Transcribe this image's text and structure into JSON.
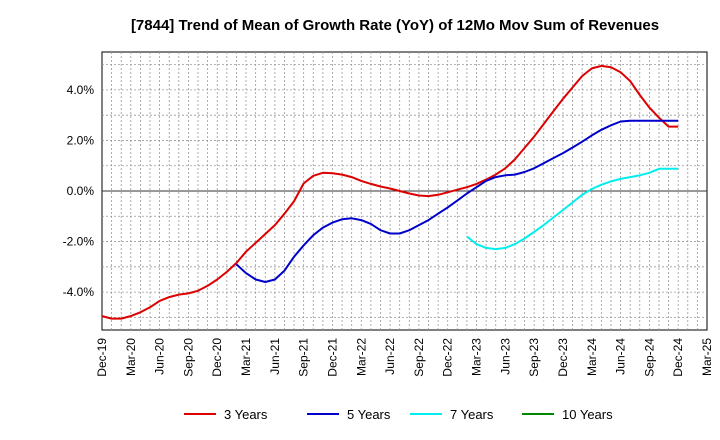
{
  "chart_data": {
    "type": "line",
    "title": "[7844]  Trend of Mean of Growth Rate (YoY) of 12Mo Mov Sum of Revenues",
    "xlabel": "",
    "ylabel": "",
    "ylim": [
      -5.5,
      5.5
    ],
    "y_ticks": [
      -4,
      -2,
      0,
      2,
      4
    ],
    "y_tick_labels": [
      "-4.0%",
      "-2.0%",
      "0.0%",
      "2.0%",
      "4.0%"
    ],
    "x_ticks": [
      0,
      3,
      6,
      9,
      12,
      15,
      18,
      21,
      24,
      27,
      30,
      33,
      36,
      39,
      42,
      45,
      48,
      51,
      54,
      57,
      60,
      63
    ],
    "x_tick_labels": [
      "Dec-19",
      "Mar-20",
      "Jun-20",
      "Sep-20",
      "Dec-20",
      "Mar-21",
      "Jun-21",
      "Sep-21",
      "Dec-21",
      "Mar-22",
      "Jun-22",
      "Sep-22",
      "Dec-22",
      "Mar-23",
      "Jun-23",
      "Sep-23",
      "Dec-23",
      "Mar-24",
      "Jun-24",
      "Sep-24",
      "Dec-24",
      "Mar-25"
    ],
    "xlim": [
      0,
      63
    ],
    "grid": true,
    "legend_position": "bottom",
    "series": [
      {
        "name": "3 Years",
        "color": "#dd0000",
        "x": [
          0,
          1,
          2,
          3,
          4,
          5,
          6,
          7,
          8,
          9,
          10,
          11,
          12,
          13,
          14,
          15,
          16,
          17,
          18,
          19,
          20,
          21,
          22,
          23,
          24,
          25,
          26,
          27,
          28,
          29,
          30,
          31,
          32,
          33,
          34,
          35,
          36,
          37,
          38,
          39,
          40,
          41,
          42,
          43,
          44,
          45,
          46,
          47,
          48,
          49,
          50,
          51,
          52,
          53,
          54,
          55,
          56,
          57,
          58,
          59,
          60
        ],
        "values": [
          -4.95,
          -5.05,
          -5.05,
          -4.95,
          -4.8,
          -4.6,
          -4.35,
          -4.2,
          -4.1,
          -4.05,
          -3.95,
          -3.75,
          -3.5,
          -3.2,
          -2.85,
          -2.4,
          -2.05,
          -1.7,
          -1.35,
          -0.9,
          -0.4,
          0.3,
          0.6,
          0.72,
          0.7,
          0.65,
          0.55,
          0.4,
          0.28,
          0.18,
          0.1,
          0.0,
          -0.1,
          -0.18,
          -0.2,
          -0.15,
          -0.05,
          0.05,
          0.15,
          0.28,
          0.45,
          0.65,
          0.9,
          1.25,
          1.7,
          2.15,
          2.65,
          3.15,
          3.65,
          4.1,
          4.55,
          4.85,
          4.95,
          4.9,
          4.7,
          4.35,
          3.8,
          3.3,
          2.9,
          2.55,
          2.55
        ]
      },
      {
        "name": "5 Years",
        "color": "#0000cc",
        "x": [
          14,
          15,
          16,
          17,
          18,
          19,
          20,
          21,
          22,
          23,
          24,
          25,
          26,
          27,
          28,
          29,
          30,
          31,
          32,
          33,
          34,
          35,
          36,
          37,
          38,
          39,
          40,
          41,
          42,
          43,
          44,
          45,
          46,
          47,
          48,
          49,
          50,
          51,
          52,
          53,
          54,
          55,
          56,
          57,
          58,
          59,
          60
        ],
        "values": [
          -2.9,
          -3.25,
          -3.5,
          -3.6,
          -3.5,
          -3.15,
          -2.6,
          -2.15,
          -1.75,
          -1.45,
          -1.25,
          -1.12,
          -1.08,
          -1.15,
          -1.3,
          -1.55,
          -1.68,
          -1.68,
          -1.55,
          -1.35,
          -1.15,
          -0.9,
          -0.65,
          -0.38,
          -0.1,
          0.15,
          0.4,
          0.55,
          0.62,
          0.65,
          0.75,
          0.9,
          1.1,
          1.3,
          1.5,
          1.72,
          1.95,
          2.2,
          2.42,
          2.6,
          2.75,
          2.78,
          2.78,
          2.78,
          2.78,
          2.78,
          2.78
        ]
      },
      {
        "name": "7 Years",
        "color": "#00eeee",
        "x": [
          38,
          39,
          40,
          41,
          42,
          43,
          44,
          45,
          46,
          47,
          48,
          49,
          50,
          51,
          52,
          53,
          54,
          55,
          56,
          57,
          58,
          59,
          60
        ],
        "values": [
          -1.8,
          -2.1,
          -2.25,
          -2.3,
          -2.25,
          -2.1,
          -1.88,
          -1.62,
          -1.35,
          -1.05,
          -0.75,
          -0.45,
          -0.15,
          0.08,
          0.25,
          0.38,
          0.48,
          0.55,
          0.62,
          0.72,
          0.88,
          0.88,
          0.88
        ]
      },
      {
        "name": "10 Years",
        "color": "#008800",
        "x": [],
        "values": []
      }
    ]
  }
}
